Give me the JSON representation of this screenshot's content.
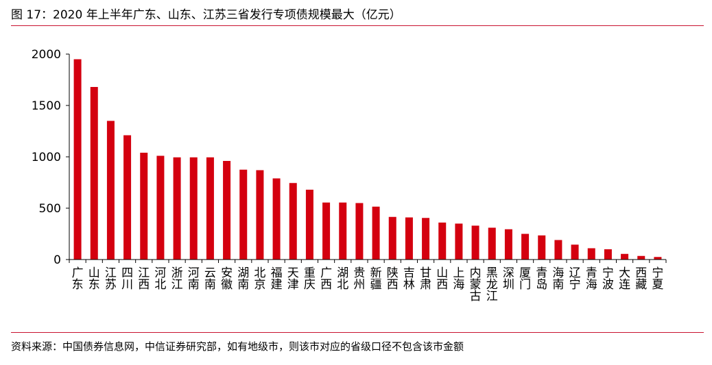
{
  "title": "图 17：2020 年上半年广东、山东、江苏三省发行专项债规模最大（亿元）",
  "source": "资料来源：中国债券信息网，中信证券研究部，如有地级市，则该市对应的省级口径不包含该市金额",
  "colors": {
    "bar": "#d4000f",
    "rule": "#c8102e",
    "axis": "#000000"
  },
  "chart_data": {
    "type": "bar",
    "title": "图 17：2020 年上半年广东、山东、江苏三省发行专项债规模最大（亿元）",
    "xlabel": "",
    "ylabel": "",
    "ylim": [
      0,
      2000
    ],
    "yticks": [
      0,
      500,
      1000,
      1500,
      2000
    ],
    "grid": false,
    "legend": "none",
    "categories": [
      "广东",
      "山东",
      "江苏",
      "四川",
      "江西",
      "河北",
      "浙江",
      "河南",
      "云南",
      "安徽",
      "湖南",
      "北京",
      "福建",
      "天津",
      "重庆",
      "广西",
      "湖北",
      "贵州",
      "新疆",
      "陕西",
      "吉林",
      "甘肃",
      "山西",
      "上海",
      "内蒙古",
      "黑龙江",
      "深圳",
      "厦门",
      "青岛",
      "海南",
      "辽宁",
      "青海",
      "宁波",
      "大连",
      "西藏",
      "宁夏"
    ],
    "values": [
      1950,
      1680,
      1350,
      1210,
      1040,
      1010,
      995,
      995,
      995,
      960,
      875,
      870,
      790,
      745,
      680,
      555,
      555,
      550,
      515,
      415,
      410,
      405,
      360,
      350,
      330,
      310,
      295,
      250,
      235,
      190,
      145,
      110,
      100,
      55,
      35,
      25
    ]
  }
}
